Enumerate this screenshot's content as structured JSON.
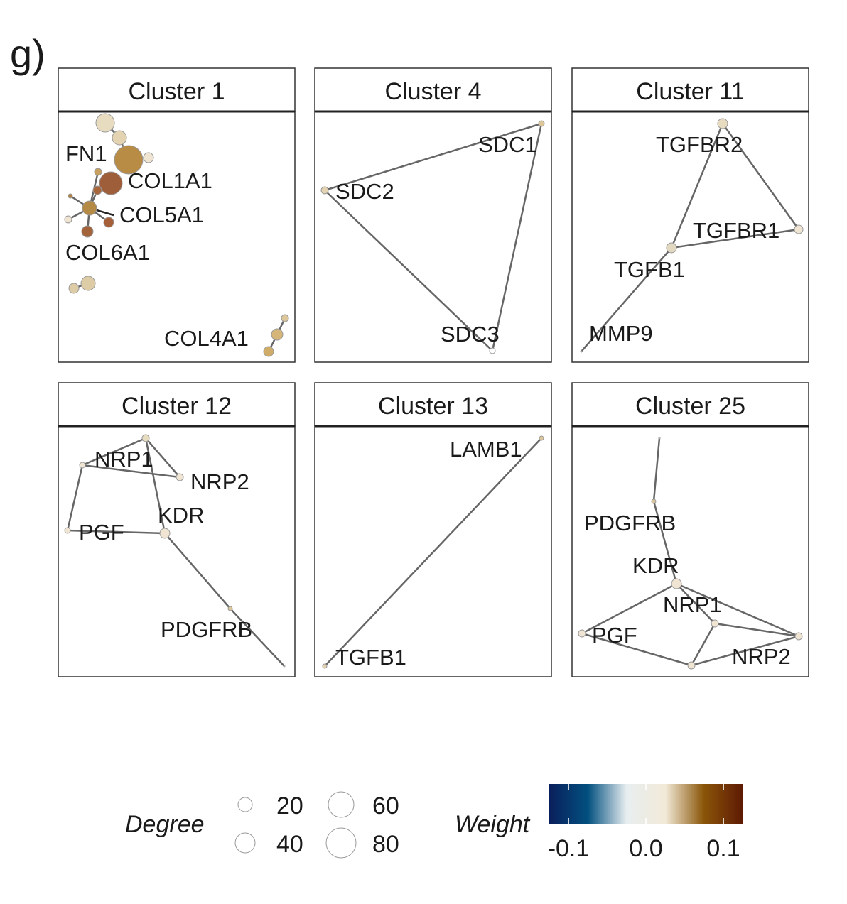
{
  "panel_label": "g)",
  "clusters": [
    {
      "title": "Cluster 1",
      "labels": [
        "FN1",
        "COL1A1",
        "COL5A1",
        "COL6A1",
        "COL4A1"
      ]
    },
    {
      "title": "Cluster 4",
      "labels": [
        "SDC1",
        "SDC2",
        "SDC3"
      ]
    },
    {
      "title": "Cluster 11",
      "labels": [
        "TGFBR2",
        "TGFBR1",
        "TGFB1",
        "MMP9"
      ]
    },
    {
      "title": "Cluster 12",
      "labels": [
        "NRP1",
        "NRP2",
        "KDR",
        "PGF",
        "PDGFRB"
      ]
    },
    {
      "title": "Cluster 13",
      "labels": [
        "LAMB1",
        "TGFB1"
      ]
    },
    {
      "title": "Cluster 25",
      "labels": [
        "PDGFRB",
        "KDR",
        "NRP1",
        "PGF",
        "NRP2"
      ]
    }
  ],
  "legend": {
    "degree_title": "Degree",
    "degree_values": [
      "20",
      "40",
      "60",
      "80"
    ],
    "weight_title": "Weight",
    "weight_ticks": [
      "-0.1",
      "0.0",
      "0.1"
    ],
    "weight_colors": [
      "#0a1f5c",
      "#02507f",
      "#e8eef0",
      "#f2ead8",
      "#8a5508",
      "#5e1a04"
    ]
  }
}
